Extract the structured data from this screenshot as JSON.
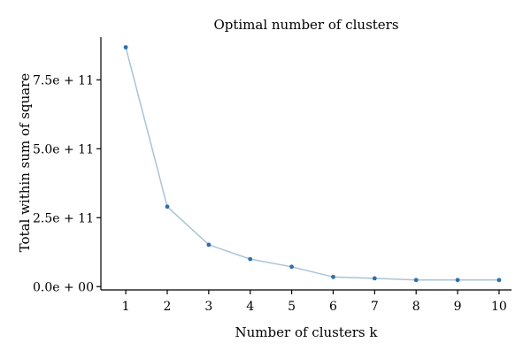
{
  "chart_data": {
    "type": "line",
    "title": "Optimal number of clusters",
    "xlabel": "Number of clusters k",
    "ylabel": "Total within sum of square",
    "x": [
      1,
      2,
      3,
      4,
      5,
      6,
      7,
      8,
      9,
      10
    ],
    "series": [
      {
        "values": [
          868000000000.0,
          290000000000.0,
          152000000000.0,
          100000000000.0,
          72000000000.0,
          35000000000.0,
          30000000000.0,
          24000000000.0,
          24000000000.0,
          24000000000.0
        ]
      }
    ],
    "xlim": [
      0.4,
      10.3
    ],
    "ylim": [
      -12000000000.0,
      905000000000.0
    ],
    "x_ticks": [
      1,
      2,
      3,
      4,
      5,
      6,
      7,
      8,
      9,
      10
    ],
    "y_ticks": [
      0,
      250000000000.0,
      500000000000.0,
      750000000000.0
    ],
    "y_tick_labels": [
      "0.0e + 00",
      "2.5e + 11",
      "5.0e + 11",
      "7.5e + 11"
    ],
    "grid": false,
    "colors": {
      "line": "#a8c4d6",
      "point": "#2f6faa",
      "axis": "#000000"
    }
  }
}
